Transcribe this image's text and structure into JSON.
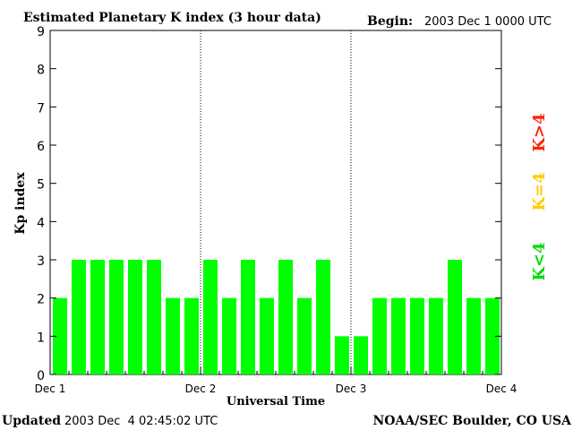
{
  "chart_data": {
    "type": "bar",
    "title": "Estimated Planetary K index (3 hour data)",
    "begin_label": "Begin:",
    "begin_value": "2003 Dec 1 0000 UTC",
    "xlabel": "Universal Time",
    "ylabel": "Kp index",
    "ylim": [
      0,
      9
    ],
    "yticks": [
      0,
      1,
      2,
      3,
      4,
      5,
      6,
      7,
      8,
      9
    ],
    "xlim": [
      0,
      24
    ],
    "x_ticks": [
      {
        "pos": 0,
        "label": "Dec 1"
      },
      {
        "pos": 8,
        "label": "Dec 2"
      },
      {
        "pos": 16,
        "label": "Dec 3"
      },
      {
        "pos": 24,
        "label": "Dec 4"
      }
    ],
    "day_dividers": [
      8,
      16
    ],
    "values": [
      2,
      3,
      3,
      3,
      3,
      3,
      2,
      2,
      3,
      2,
      3,
      2,
      3,
      2,
      3,
      1,
      1,
      2,
      2,
      2,
      2,
      3,
      2,
      2
    ],
    "bar_color": "#00ff00",
    "legend": [
      {
        "label": "K>4",
        "color": "#ff2200"
      },
      {
        "label": "K=4",
        "color": "#ffcc00"
      },
      {
        "label": "K<4",
        "color": "#00dd00"
      }
    ],
    "grid": false
  },
  "footer": {
    "updated_label": "Updated",
    "updated_value": "2003 Dec  4 02:45:02 UTC",
    "source": "NOAA/SEC Boulder, CO USA"
  }
}
